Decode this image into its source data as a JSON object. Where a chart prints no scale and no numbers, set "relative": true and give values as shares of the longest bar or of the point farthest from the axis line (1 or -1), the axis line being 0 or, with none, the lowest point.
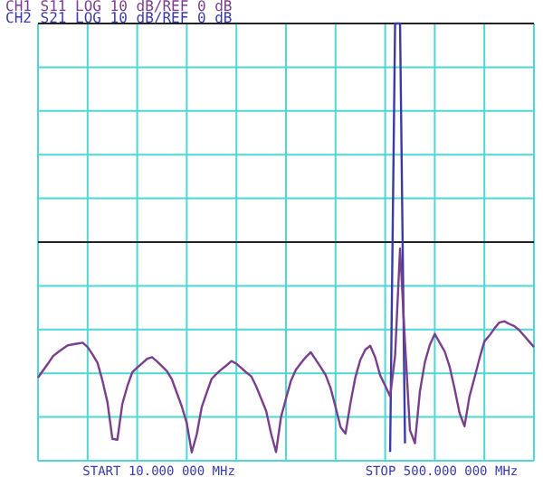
{
  "chart_data": {
    "type": "line",
    "relative": true,
    "grid": true,
    "marker": "none",
    "line_style": "solid",
    "annotations": [
      "START 10.000 000 MHz",
      "STOP 500.000 000 MHz"
    ],
    "ref_lines": [
      {
        "axis": "y",
        "value": 0.5,
        "color": "#222222"
      }
    ],
    "categories": [
      null,
      null,
      null,
      null,
      null,
      null,
      null,
      null,
      null,
      null,
      null,
      null,
      null,
      null,
      null,
      null,
      null,
      null,
      null,
      null,
      null,
      null,
      null,
      null,
      null,
      null,
      null,
      null,
      null,
      null,
      null,
      null,
      null,
      null,
      null,
      null,
      null,
      null,
      null,
      null,
      null,
      null,
      null,
      null,
      null,
      null,
      null,
      null,
      null,
      null,
      null,
      null,
      null,
      null,
      null,
      null,
      null,
      null,
      null,
      null,
      null,
      null,
      null,
      null,
      null,
      null,
      null,
      null,
      null,
      null,
      null,
      null,
      null,
      null,
      null,
      null,
      null,
      null,
      null,
      null,
      null,
      null,
      null,
      null,
      null,
      null,
      null,
      null,
      null,
      null,
      null,
      null,
      null,
      null,
      null,
      null,
      null,
      null,
      null,
      null,
      null
    ],
    "series": [
      {
        "name": "CH1 S11 LOG 10 dB/REF 0 dB",
        "color": "#7a3f8c",
        "values": [
          0.19,
          0.206,
          0.222,
          0.239,
          0.248,
          0.256,
          0.264,
          0.266,
          0.268,
          0.27,
          0.26,
          0.243,
          0.224,
          0.183,
          0.134,
          0.05,
          0.048,
          0.13,
          0.17,
          0.202,
          0.213,
          0.223,
          0.233,
          0.237,
          0.227,
          0.216,
          0.205,
          0.186,
          0.155,
          0.124,
          0.086,
          0.019,
          0.06,
          0.122,
          0.155,
          0.187,
          0.199,
          0.209,
          0.218,
          0.228,
          0.222,
          0.212,
          0.202,
          0.193,
          0.17,
          0.142,
          0.114,
          0.062,
          0.02,
          0.1,
          0.142,
          0.183,
          0.208,
          0.223,
          0.237,
          0.248,
          0.231,
          0.214,
          0.196,
          0.166,
          0.123,
          0.077,
          0.062,
          0.132,
          0.191,
          0.231,
          0.254,
          0.263,
          0.236,
          0.195,
          0.172,
          0.147,
          0.24,
          0.485,
          0.27,
          0.07,
          0.04,
          0.158,
          0.225,
          0.265,
          0.29,
          0.27,
          0.25,
          0.215,
          0.165,
          0.109,
          0.079,
          0.147,
          0.189,
          0.233,
          0.273,
          0.286,
          0.302,
          0.316,
          0.319,
          0.313,
          0.308,
          0.299,
          0.286,
          0.273,
          0.26
        ]
      },
      {
        "name": "CH2 S21 LOG 10 dB/REF 0 dB",
        "color": "#3a3aa8",
        "values": [
          null,
          null,
          null,
          null,
          null,
          null,
          null,
          null,
          null,
          null,
          null,
          null,
          null,
          null,
          null,
          null,
          null,
          null,
          null,
          null,
          null,
          null,
          null,
          null,
          null,
          null,
          null,
          null,
          null,
          null,
          null,
          null,
          null,
          null,
          null,
          null,
          null,
          null,
          null,
          null,
          null,
          null,
          null,
          null,
          null,
          null,
          null,
          null,
          null,
          null,
          null,
          null,
          null,
          null,
          null,
          null,
          null,
          null,
          null,
          null,
          null,
          null,
          null,
          null,
          null,
          null,
          null,
          null,
          null,
          null,
          null,
          0.02,
          1,
          1,
          0.04,
          null,
          null,
          null,
          null,
          null,
          null,
          null,
          null,
          null,
          null,
          null,
          null,
          null,
          null,
          null,
          null,
          null,
          null,
          null,
          null,
          null,
          null,
          null,
          null,
          null,
          null
        ]
      }
    ]
  }
}
